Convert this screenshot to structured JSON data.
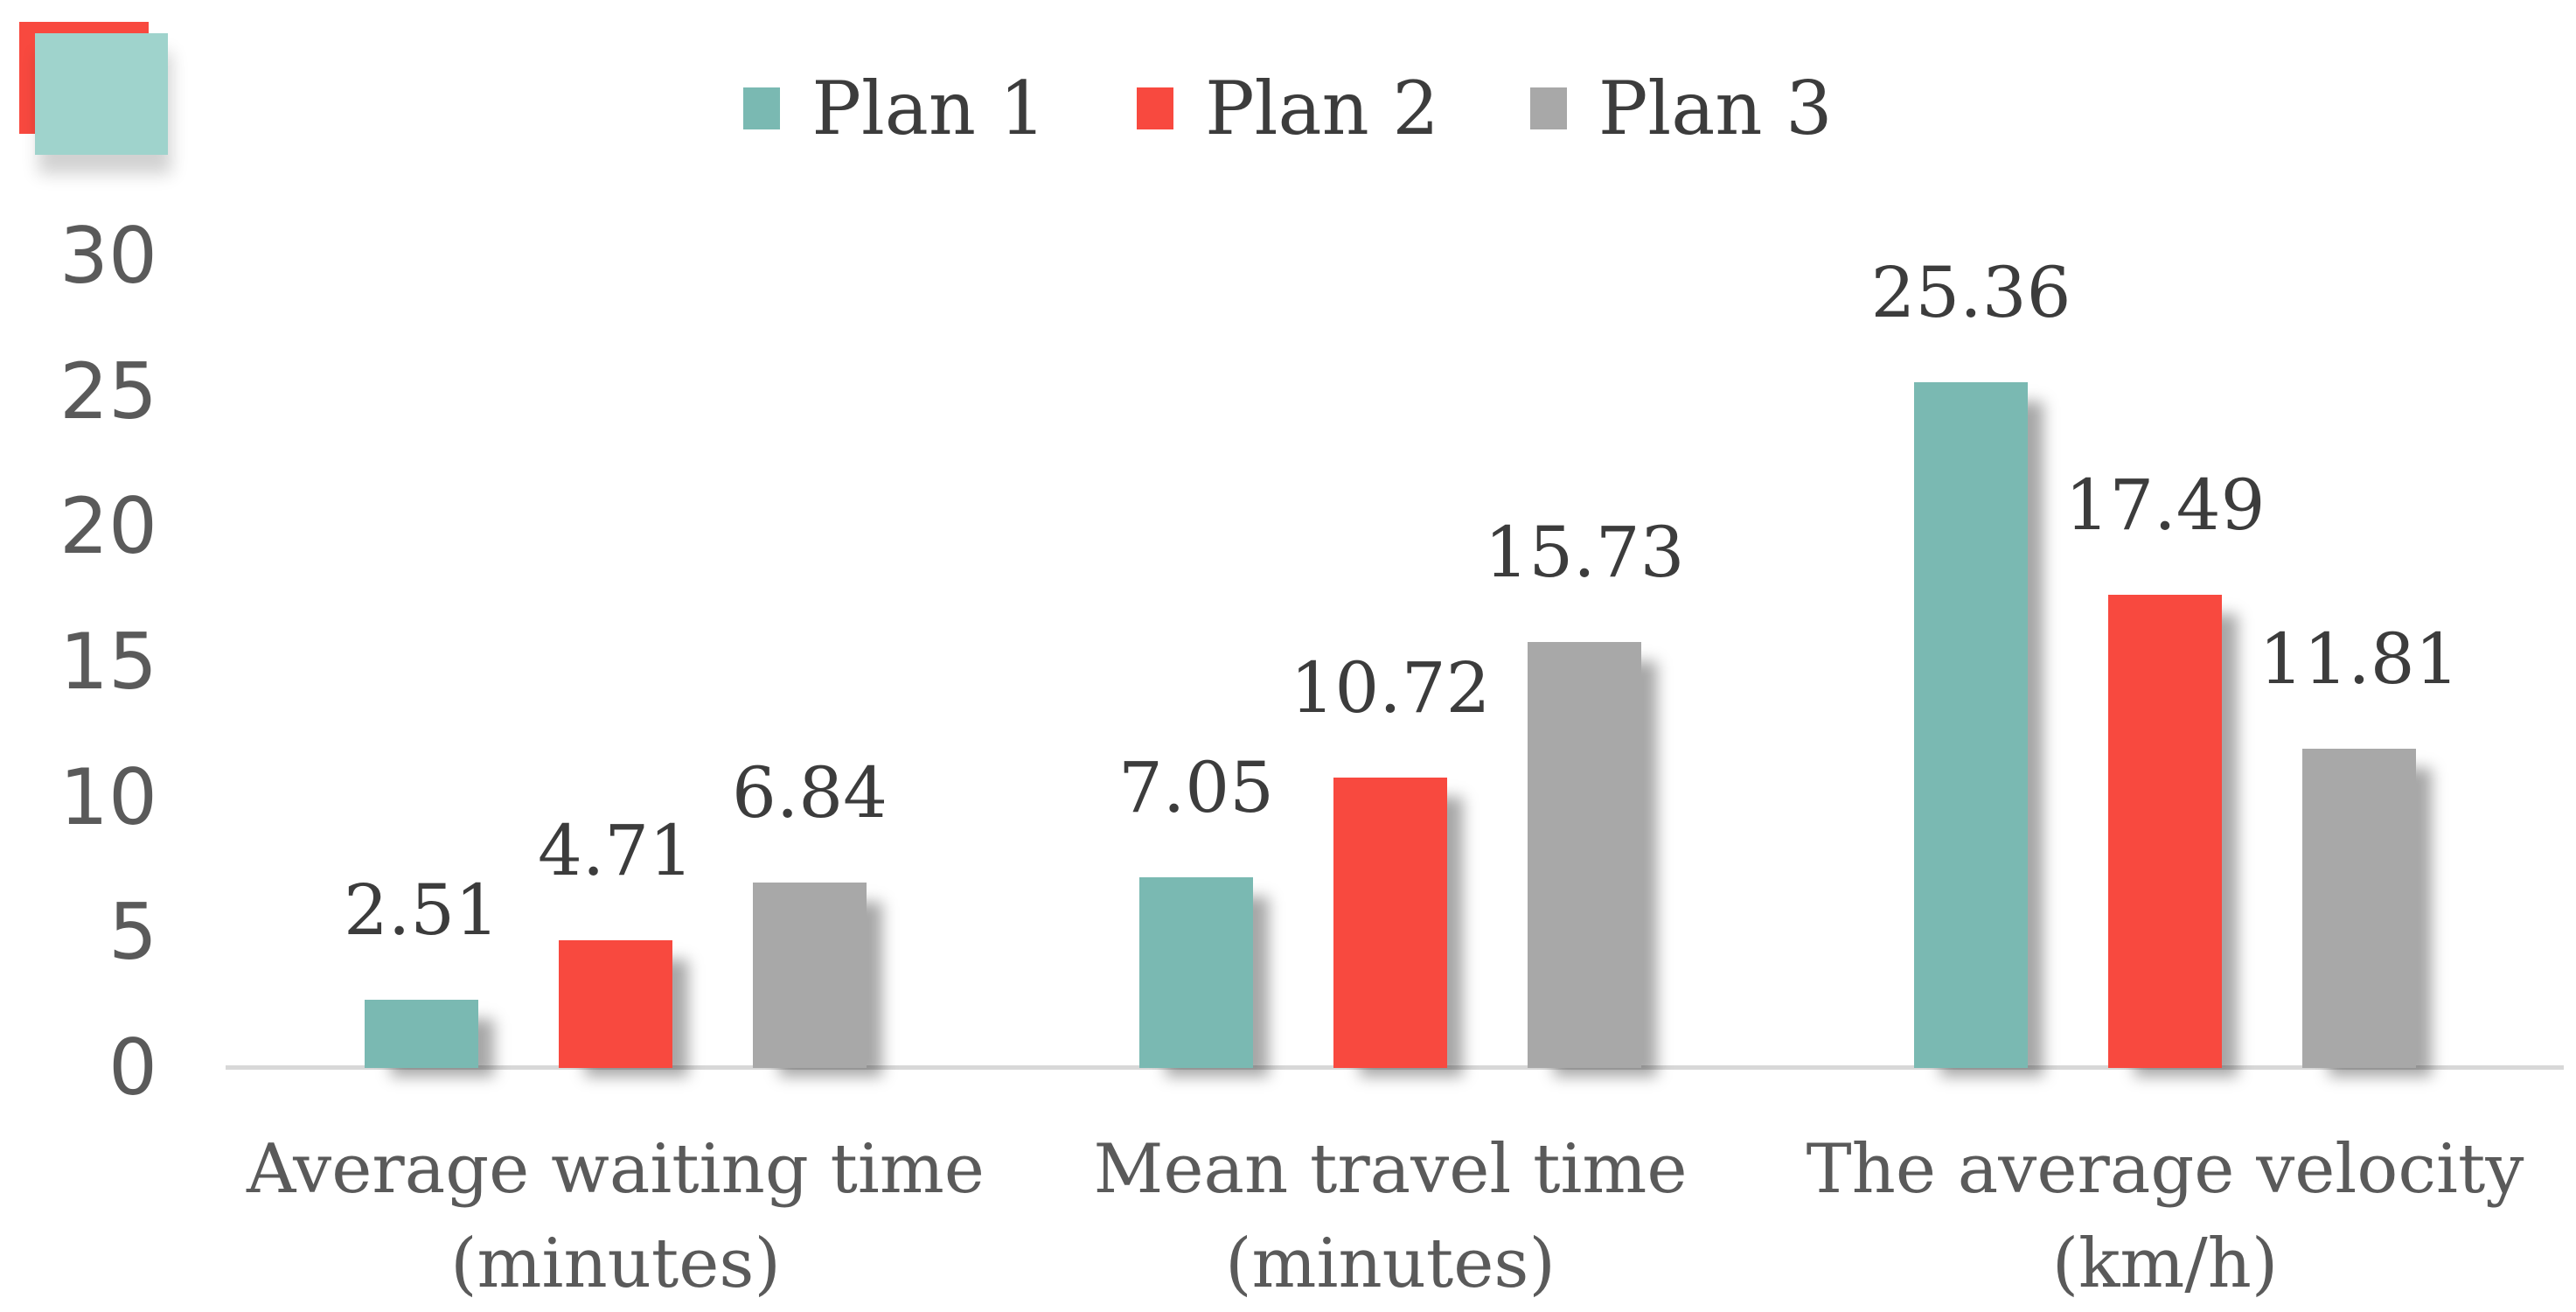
{
  "figure": {
    "background": "#ffffff",
    "decoration": {
      "red_square_color": "#f8493f",
      "teal_square_color": "#9fd3cc"
    }
  },
  "colors": {
    "plan1_teal": "#7ab9b2",
    "plan2_red": "#f8493f",
    "plan3_gray": "#a8a8a8",
    "axis_line": "#d8d8d8",
    "tick_text": "#5a5a5a",
    "category_text": "#5a5a5a",
    "data_label_text": "#3c3c3c",
    "legend_text": "#3c3c3c"
  },
  "chart_data": {
    "type": "bar",
    "title": "",
    "xlabel": "",
    "ylabel": "",
    "legend_position": "top-center",
    "grid": false,
    "ylim": [
      0,
      30
    ],
    "y_ticks": [
      0,
      5,
      10,
      15,
      20,
      25,
      30
    ],
    "categories": [
      {
        "line1": "Average waiting time",
        "line2": "(minutes)"
      },
      {
        "line1": "Mean travel time",
        "line2": "(minutes)"
      },
      {
        "line1": "The average velocity",
        "line2": "(km/h)"
      }
    ],
    "series": [
      {
        "name": "Plan 1",
        "color": "#7ab9b2",
        "values": [
          2.51,
          7.05,
          25.36
        ]
      },
      {
        "name": "Plan 2",
        "color": "#f8493f",
        "values": [
          4.71,
          10.72,
          17.49
        ]
      },
      {
        "name": "Plan 3",
        "color": "#a8a8a8",
        "values": [
          6.84,
          15.73,
          11.81
        ]
      }
    ],
    "data_labels": [
      [
        "2.51",
        "7.05",
        "25.36"
      ],
      [
        "4.71",
        "10.72",
        "17.49"
      ],
      [
        "6.84",
        "15.73",
        "11.81"
      ]
    ]
  }
}
